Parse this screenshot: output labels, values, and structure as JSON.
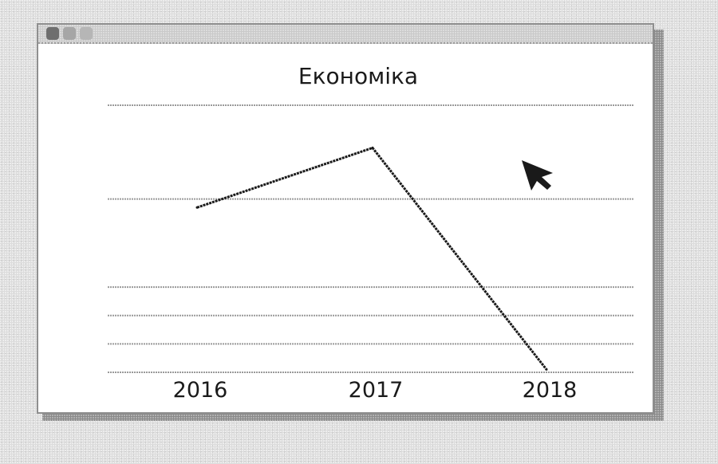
{
  "window": {
    "controls": [
      "close",
      "minimize",
      "maximize"
    ]
  },
  "chart_data": {
    "type": "line",
    "title": "Економіка",
    "xlabel": "",
    "ylabel": "",
    "categories": [
      "2016",
      "2017",
      "2018"
    ],
    "series": [
      {
        "values": [
          2.4,
          4.5,
          -3.3
        ]
      }
    ],
    "ylim": [
      -3.4,
      6.0
    ],
    "y_gridlines": [
      -3.4,
      -2.4,
      -1.4,
      -0.4,
      2.7
    ],
    "grid": true,
    "legend": "none",
    "line_color": "#1a1a1a",
    "grid_color": "#9a9a9a"
  },
  "cursor": {
    "icon": "arrow-cursor-icon"
  }
}
